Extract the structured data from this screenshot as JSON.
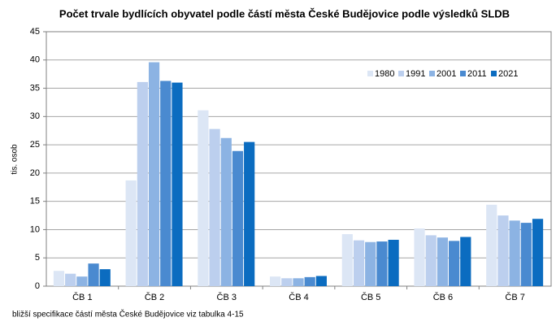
{
  "chart_data": {
    "type": "bar",
    "title": "Počet trvale bydlících obyvatel podle částí města České Budějovice podle výsledků  SLDB",
    "ylabel": "tis. osob",
    "note": "bližší specifikace částí města České Budějovice viz tabulka 4-15",
    "categories": [
      "ČB 1",
      "ČB 2",
      "ČB 3",
      "ČB 4",
      "ČB 5",
      "ČB 6",
      "ČB 7"
    ],
    "series": [
      {
        "name": "1980",
        "color": "#dce6f5",
        "values": [
          2.7,
          18.7,
          31.1,
          1.7,
          9.2,
          10.2,
          14.4
        ]
      },
      {
        "name": "1991",
        "color": "#bccfee",
        "values": [
          2.2,
          36.1,
          27.8,
          1.4,
          8.1,
          9.0,
          12.5
        ]
      },
      {
        "name": "2001",
        "color": "#8cb3e3",
        "values": [
          1.7,
          39.6,
          26.2,
          1.4,
          7.8,
          8.6,
          11.6
        ]
      },
      {
        "name": "2011",
        "color": "#4a8ad0",
        "values": [
          4.0,
          36.3,
          23.9,
          1.6,
          7.9,
          8.0,
          11.2
        ]
      },
      {
        "name": "2021",
        "color": "#0b6cc0",
        "values": [
          3.0,
          36.0,
          25.5,
          1.8,
          8.2,
          8.7,
          11.9
        ]
      }
    ],
    "ylim": [
      0,
      45
    ],
    "yticks": [
      0,
      5,
      10,
      15,
      20,
      25,
      30,
      35,
      40,
      45
    ],
    "grid": true,
    "legend": "upper right"
  }
}
